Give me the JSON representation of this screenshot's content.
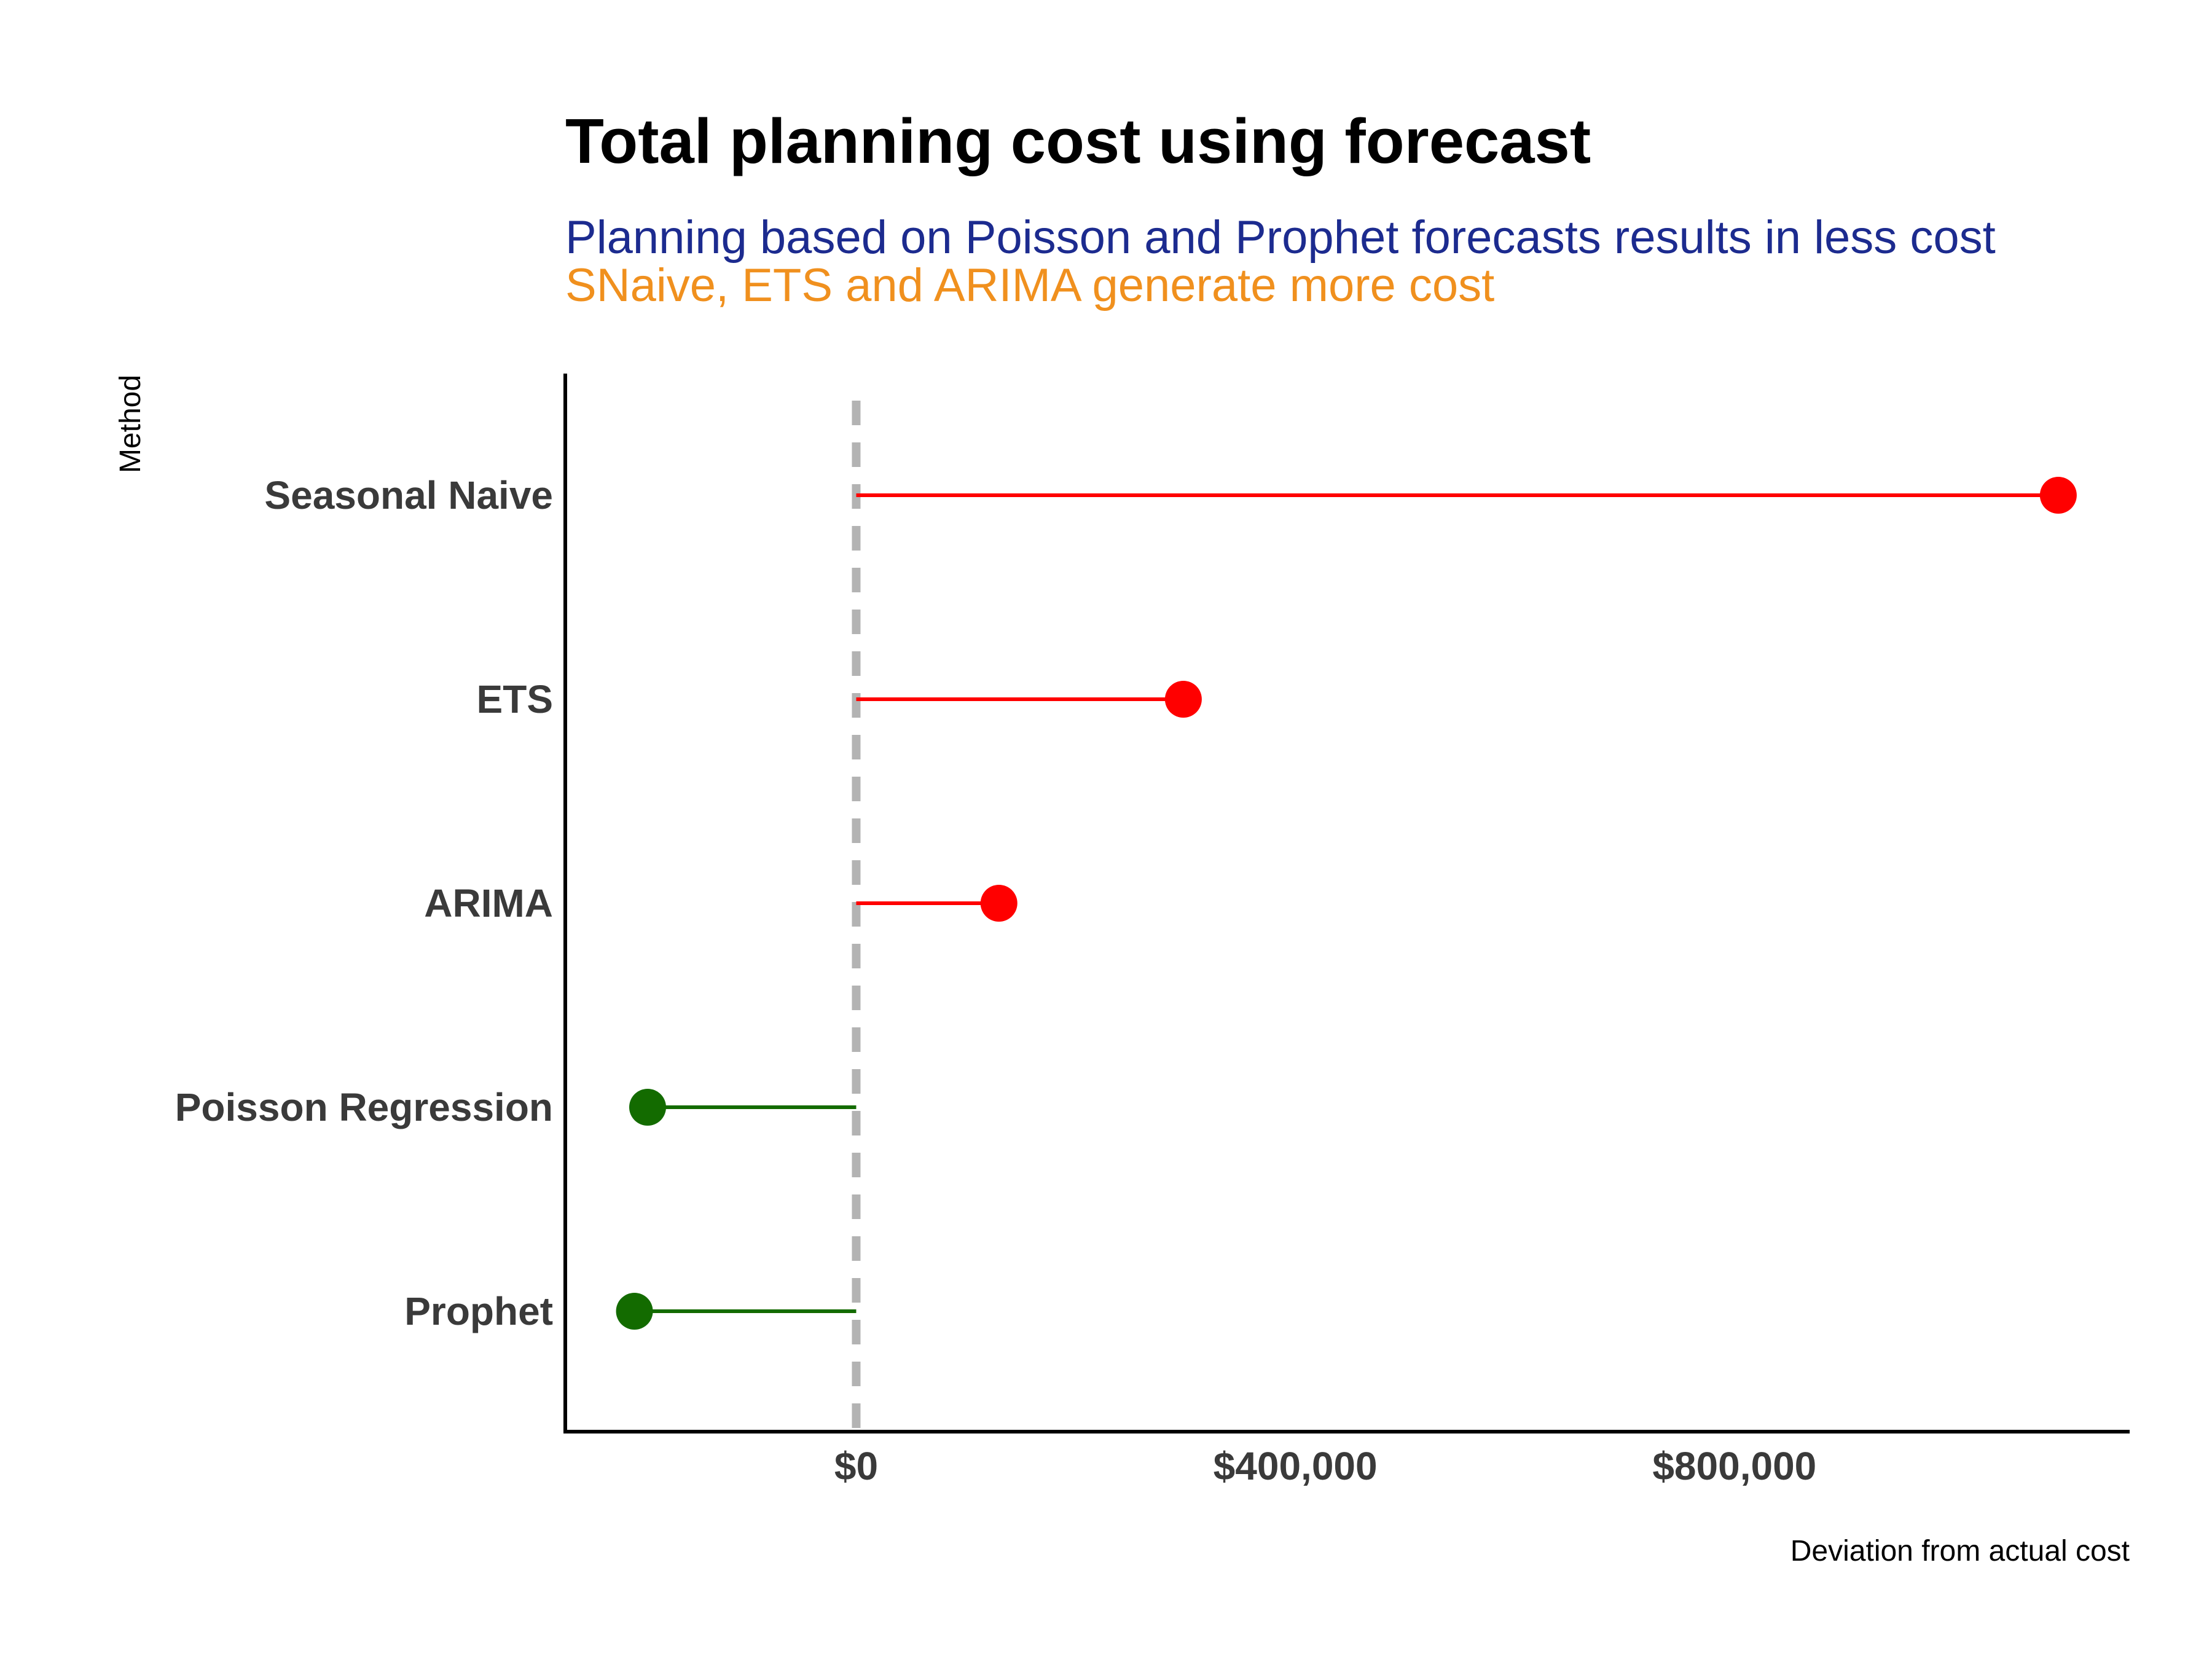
{
  "chart_data": {
    "type": "lollipop",
    "title": "Total planning cost using forecast",
    "subtitle_lines": [
      {
        "text": "Planning based on Poisson and Prophet forecasts results in less cost",
        "color": "#1c2b8f"
      },
      {
        "text": "SNaive, ETS and ARIMA generate more cost",
        "color": "#f0901e"
      }
    ],
    "xlabel": "Deviation from actual cost",
    "ylabel": "Method",
    "xlim": [
      -265000,
      1160000
    ],
    "x_ticks": [
      0,
      400000,
      800000
    ],
    "x_tick_labels": [
      "$0",
      "$400,000",
      "$800,000"
    ],
    "reference_line": {
      "x": 0,
      "style": "dashed",
      "color": "#b3b3b3"
    },
    "grid": false,
    "legend": "none",
    "categories": [
      "Seasonal Naive",
      "ETS",
      "ARIMA",
      "Poisson Regression",
      "Prophet"
    ],
    "values": [
      1095000,
      298000,
      130000,
      -190000,
      -202000
    ],
    "colors": {
      "positive": "#ff0000",
      "negative": "#136b00",
      "axis": "#000000"
    }
  }
}
